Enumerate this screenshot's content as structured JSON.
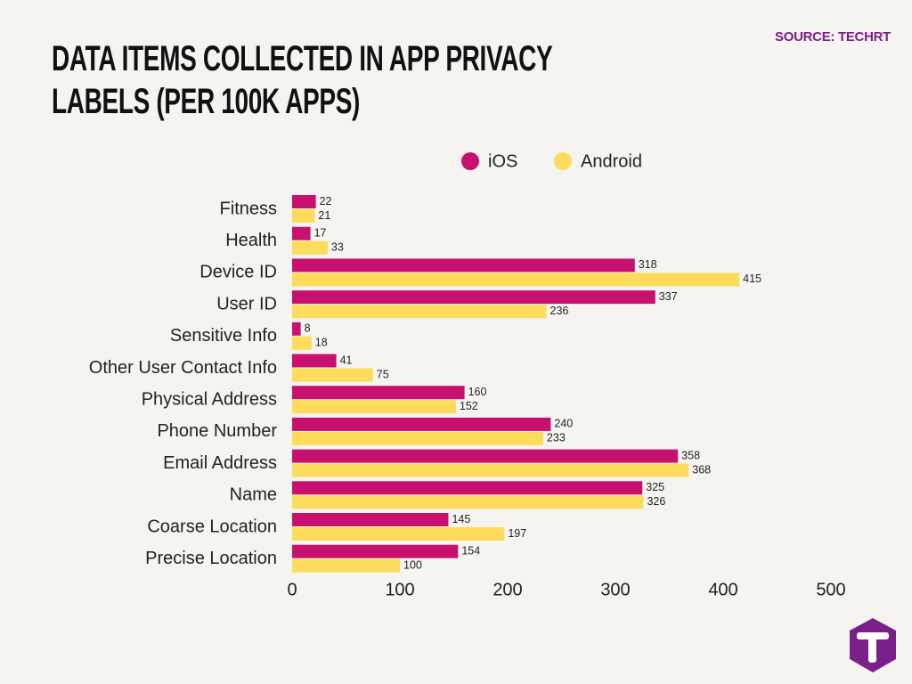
{
  "chart_data": {
    "type": "bar",
    "orientation": "horizontal",
    "title": "DATA ITEMS COLLECTED IN APP PRIVACY LABELS (PER 100K APPS)",
    "source": "SOURCE: TECHRT",
    "categories": [
      "Fitness",
      "Health",
      "Device ID",
      "User ID",
      "Sensitive Info",
      "Other User Contact Info",
      "Physical Address",
      "Phone Number",
      "Email Address",
      "Name",
      "Coarse Location",
      "Precise Location"
    ],
    "series": [
      {
        "name": "iOS",
        "color": "#c8106e",
        "values": [
          22,
          17,
          318,
          337,
          8,
          41,
          160,
          240,
          358,
          325,
          145,
          154
        ]
      },
      {
        "name": "Android",
        "color": "#fddc5c",
        "values": [
          21,
          33,
          415,
          236,
          18,
          75,
          152,
          233,
          368,
          326,
          197,
          100
        ]
      }
    ],
    "xlim": [
      0,
      500
    ],
    "xticks": [
      0,
      100,
      200,
      300,
      400,
      500
    ],
    "grid": false,
    "legend": "top"
  }
}
